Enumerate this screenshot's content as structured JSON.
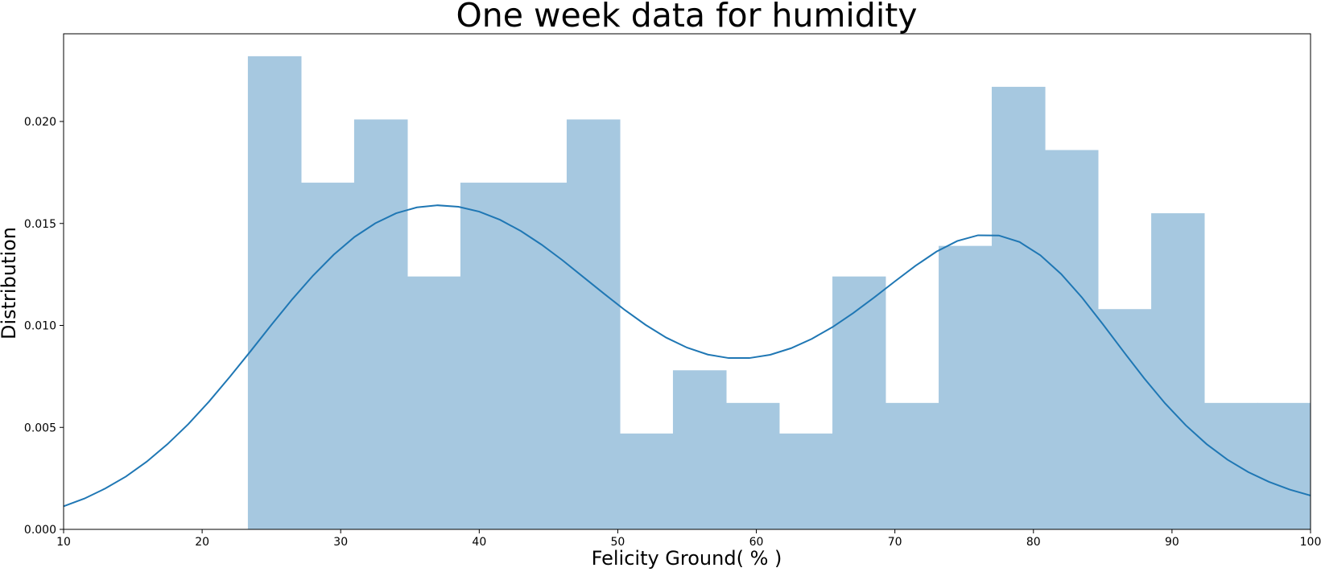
{
  "chart_data": {
    "type": "bar",
    "title": "One week data for humidity",
    "xlabel": "Felicity Ground( % )",
    "ylabel": "Distribution",
    "xlim": [
      10,
      100
    ],
    "ylim": [
      0,
      0.0243
    ],
    "grid": false,
    "legend": "none",
    "x_ticks": [
      10,
      20,
      30,
      40,
      50,
      60,
      70,
      80,
      90,
      100
    ],
    "x_tick_labels": [
      "10",
      "20",
      "30",
      "40",
      "50",
      "60",
      "70",
      "80",
      "90",
      "100"
    ],
    "y_ticks": [
      0,
      0.005,
      0.01,
      0.015,
      0.02
    ],
    "y_tick_labels": [
      "0.000",
      "0.005",
      "0.010",
      "0.015",
      "0.020"
    ],
    "histogram": {
      "bin_edges": [
        23.3,
        27.14,
        30.97,
        34.81,
        38.64,
        42.48,
        46.31,
        50.15,
        53.98,
        57.82,
        61.65,
        65.49,
        69.32,
        73.16,
        76.99,
        80.83,
        84.66,
        88.5,
        92.33,
        96.17,
        100.0
      ],
      "values": [
        0.0232,
        0.017,
        0.0201,
        0.0124,
        0.017,
        0.017,
        0.0201,
        0.0047,
        0.0078,
        0.0062,
        0.0047,
        0.0124,
        0.0062,
        0.0139,
        0.0217,
        0.0186,
        0.0108,
        0.0155,
        0.0062,
        0.0062
      ],
      "color": "#a6c8e0"
    },
    "kde": {
      "color": "#1f77b4",
      "x": [
        10,
        11.5,
        13,
        14.5,
        16,
        17.5,
        19,
        20.5,
        22,
        23.5,
        25,
        26.5,
        28,
        29.5,
        31,
        32.5,
        34,
        35.5,
        37,
        38.5,
        40,
        41.5,
        43,
        44.5,
        46,
        47.5,
        49,
        50.5,
        52,
        53.5,
        55,
        56.5,
        58,
        59.5,
        61,
        62.5,
        64,
        65.5,
        67,
        68.5,
        70,
        71.5,
        73,
        74.5,
        76,
        77.5,
        79,
        80.5,
        82,
        83.5,
        85,
        86.5,
        88,
        89.5,
        91,
        92.5,
        94,
        95.5,
        97,
        98.5,
        100
      ],
      "y": [
        0.00113,
        0.00151,
        0.002,
        0.00259,
        0.00332,
        0.00418,
        0.00516,
        0.00627,
        0.00748,
        0.00874,
        0.01003,
        0.01128,
        0.01244,
        0.01347,
        0.01434,
        0.01501,
        0.0155,
        0.01579,
        0.01589,
        0.01582,
        0.01558,
        0.01518,
        0.01463,
        0.01396,
        0.0132,
        0.01238,
        0.01156,
        0.01076,
        0.01003,
        0.0094,
        0.00891,
        0.00857,
        0.0084,
        0.0084,
        0.00856,
        0.00888,
        0.00934,
        0.00992,
        0.01061,
        0.01137,
        0.01216,
        0.01293,
        0.01362,
        0.01414,
        0.01442,
        0.01441,
        0.01409,
        0.01344,
        0.01252,
        0.01137,
        0.01007,
        0.00872,
        0.0074,
        0.00618,
        0.0051,
        0.00418,
        0.00342,
        0.00281,
        0.00233,
        0.00195,
        0.00166
      ]
    }
  }
}
